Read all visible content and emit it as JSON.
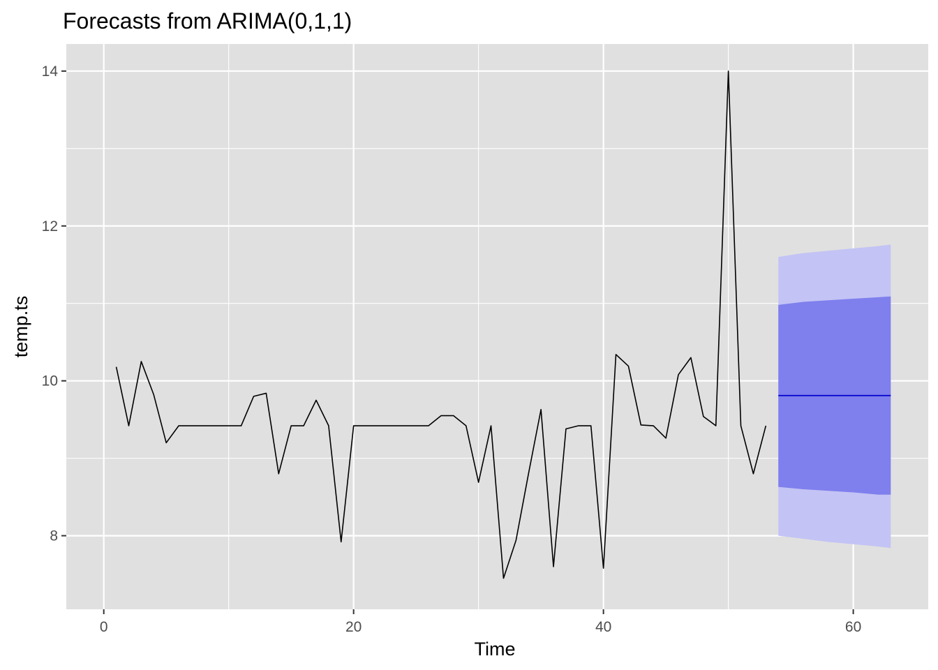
{
  "chart_data": {
    "type": "line",
    "title": "Forecasts from ARIMA(0,1,1)",
    "xlabel": "Time",
    "ylabel": "temp.ts",
    "xlim": [
      -3,
      66
    ],
    "ylim": [
      7.05,
      14.35
    ],
    "x_ticks": [
      0,
      20,
      40,
      60
    ],
    "x_tick_labels": [
      "0",
      "20",
      "40",
      "60"
    ],
    "x_minor": [
      10,
      30,
      50
    ],
    "y_ticks": [
      8,
      10,
      12,
      14
    ],
    "y_tick_labels": [
      "8",
      "10",
      "12",
      "14"
    ],
    "y_minor": [
      9,
      11,
      13
    ],
    "grid": true,
    "colors": {
      "panel": "#e0e0e0",
      "grid": "#ffffff",
      "series": "#000000",
      "forecast": "#0000cd",
      "band80": "#7f7fed",
      "band95": "#c3c3f5"
    },
    "series": [
      {
        "x": [
          1,
          2,
          3,
          4,
          5,
          6,
          7,
          8,
          9,
          10,
          11,
          12,
          13,
          14,
          15,
          16,
          17,
          18,
          19,
          20,
          21,
          22,
          23,
          24,
          25,
          26,
          27,
          28,
          29,
          30,
          31,
          32,
          33,
          34,
          35,
          36,
          37,
          38,
          39,
          40,
          41,
          42,
          43,
          44,
          45,
          46,
          47,
          48,
          49,
          50,
          51,
          52,
          53
        ],
        "values": [
          10.18,
          9.42,
          10.25,
          9.82,
          9.2,
          9.42,
          9.42,
          9.42,
          9.42,
          9.42,
          9.42,
          9.8,
          9.84,
          8.8,
          9.42,
          9.42,
          9.75,
          9.42,
          7.92,
          9.42,
          9.42,
          9.42,
          9.42,
          9.42,
          9.42,
          9.42,
          9.55,
          9.55,
          9.42,
          8.69,
          9.42,
          7.45,
          7.94,
          8.8,
          9.63,
          7.6,
          9.38,
          9.42,
          9.42,
          7.58,
          10.34,
          10.19,
          9.43,
          9.42,
          9.26,
          10.08,
          10.3,
          9.54,
          9.42,
          14.0,
          9.42,
          8.8,
          9.42
        ]
      }
    ],
    "forecast": {
      "x": [
        54,
        56,
        58,
        60,
        62,
        63
      ],
      "mean": [
        9.81,
        9.81,
        9.81,
        9.81,
        9.81,
        9.81
      ],
      "lo80": [
        8.63,
        8.6,
        8.58,
        8.56,
        8.53,
        8.53
      ],
      "hi80": [
        10.98,
        11.02,
        11.04,
        11.06,
        11.08,
        11.09
      ],
      "lo95": [
        8.0,
        7.96,
        7.92,
        7.89,
        7.86,
        7.84
      ],
      "hi95": [
        11.6,
        11.65,
        11.68,
        11.71,
        11.74,
        11.76
      ]
    }
  }
}
